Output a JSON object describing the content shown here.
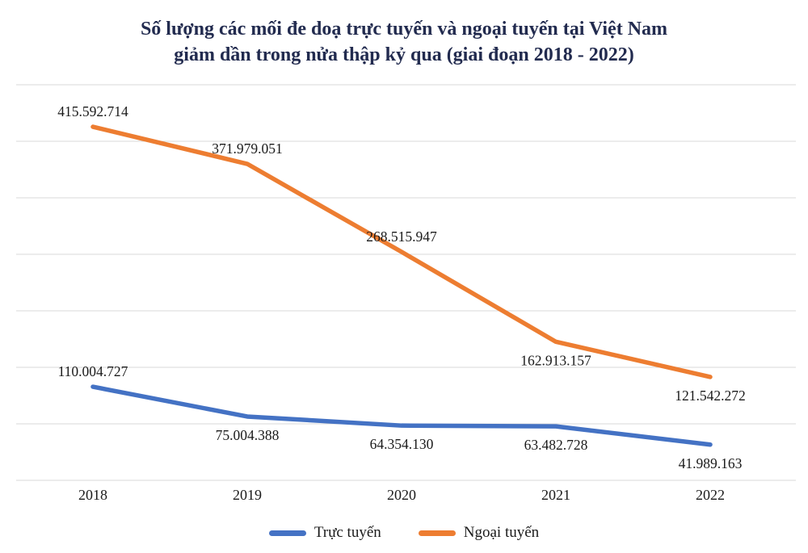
{
  "header": {
    "title_line1": "Số lượng các mối đe doạ trực tuyến và ngoại tuyến tại Việt Nam",
    "title_line2": "giảm dần trong nửa thập kỷ qua (giai đoạn 2018 - 2022)"
  },
  "chart_data": {
    "type": "line",
    "title": "Số lượng các mối đe doạ trực tuyến và ngoại tuyến tại Việt Nam giảm dần trong nửa thập kỷ qua (giai đoạn 2018 - 2022)",
    "categories": [
      "2018",
      "2019",
      "2020",
      "2021",
      "2022"
    ],
    "series": [
      {
        "name": "Trực tuyến",
        "color": "#4472C4",
        "values": [
          110004727,
          75004388,
          64354130,
          63482728,
          41989163
        ],
        "labels": [
          "110.004.727",
          "75.004.388",
          "64.354.130",
          "63.482.728",
          "41.989.163"
        ],
        "label_side": [
          "above",
          "below",
          "below",
          "below",
          "below"
        ]
      },
      {
        "name": "Ngoại tuyến",
        "color": "#ED7D31",
        "values": [
          415592714,
          371979051,
          268515947,
          162913157,
          121542272
        ],
        "labels": [
          "415.592.714",
          "371.979.051",
          "268.515.947",
          "162.913.157",
          "121.542.272"
        ],
        "label_side": [
          "above",
          "above",
          "above",
          "below",
          "below"
        ]
      }
    ],
    "xlabel": "",
    "ylabel": "",
    "ylim": [
      0,
      465000000
    ],
    "grid": true,
    "gridline_count": 8,
    "gridline_color": "#D9D9D9",
    "legend_position": "bottom"
  }
}
